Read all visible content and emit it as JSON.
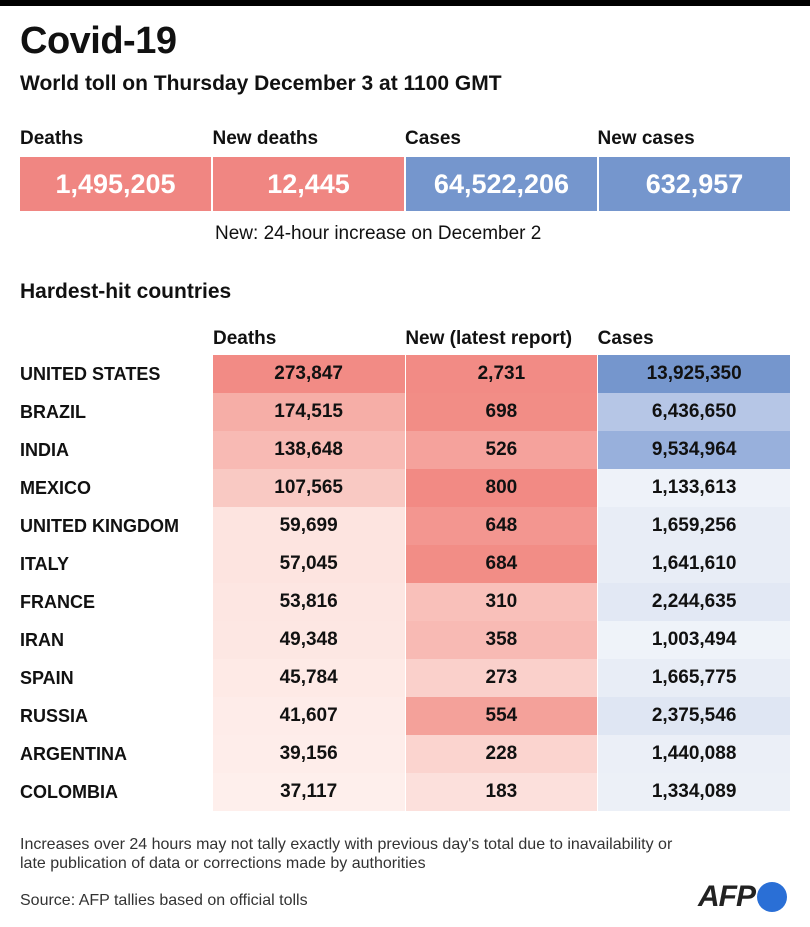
{
  "header": {
    "title": "Covid-19",
    "subtitle": "World toll on Thursday December 3 at 1100 GMT"
  },
  "summary": {
    "items": [
      {
        "label": "Deaths",
        "value": "1,495,205",
        "color": "#f08682"
      },
      {
        "label": "New deaths",
        "value": "12,445",
        "color": "#f08682"
      },
      {
        "label": "Cases",
        "value": "64,522,206",
        "color": "#7596cd"
      },
      {
        "label": "New cases",
        "value": "632,957",
        "color": "#7596cd"
      }
    ],
    "note": "New: 24-hour increase on December 2"
  },
  "table": {
    "title": "Hardest-hit countries",
    "headers": [
      "Deaths",
      "New (latest report)",
      "Cases"
    ],
    "rows": [
      {
        "country": "UNITED STATES",
        "deaths": "273,847",
        "new": "2,731",
        "cases": "13,925,350",
        "deaths_color": "#f28b85",
        "new_color": "#f28b85",
        "cases_color": "#7596cd"
      },
      {
        "country": "BRAZIL",
        "deaths": "174,515",
        "new": "698",
        "cases": "6,436,650",
        "deaths_color": "#f6aea7",
        "new_color": "#f28d86",
        "cases_color": "#b6c6e6"
      },
      {
        "country": "INDIA",
        "deaths": "138,648",
        "new": "526",
        "cases": "9,534,964",
        "deaths_color": "#f8bab4",
        "new_color": "#f5a29c",
        "cases_color": "#98b0dc"
      },
      {
        "country": "MEXICO",
        "deaths": "107,565",
        "new": "800",
        "cases": "1,133,613",
        "deaths_color": "#f9c9c3",
        "new_color": "#f28a84",
        "cases_color": "#eef2f9"
      },
      {
        "country": "UNITED KINGDOM",
        "deaths": "59,699",
        "new": "648",
        "cases": "1,659,256",
        "deaths_color": "#fde4e0",
        "new_color": "#f39690",
        "cases_color": "#e8edf6"
      },
      {
        "country": "ITALY",
        "deaths": "57,045",
        "new": "684",
        "cases": "1,641,610",
        "deaths_color": "#fde4e0",
        "new_color": "#f28d86",
        "cases_color": "#e8edf6"
      },
      {
        "country": "FRANCE",
        "deaths": "53,816",
        "new": "310",
        "cases": "2,244,635",
        "deaths_color": "#fde6e2",
        "new_color": "#f9c0ba",
        "cases_color": "#e2e8f4"
      },
      {
        "country": "IRAN",
        "deaths": "49,348",
        "new": "358",
        "cases": "1,003,494",
        "deaths_color": "#fde7e3",
        "new_color": "#f8bab4",
        "cases_color": "#eff3f9"
      },
      {
        "country": "SPAIN",
        "deaths": "45,784",
        "new": "273",
        "cases": "1,665,775",
        "deaths_color": "#feeae6",
        "new_color": "#fad0cb",
        "cases_color": "#e8edf6"
      },
      {
        "country": "RUSSIA",
        "deaths": "41,607",
        "new": "554",
        "cases": "2,375,546",
        "deaths_color": "#feece9",
        "new_color": "#f4a19a",
        "cases_color": "#dfe6f3"
      },
      {
        "country": "ARGENTINA",
        "deaths": "39,156",
        "new": "228",
        "cases": "1,440,088",
        "deaths_color": "#feedea",
        "new_color": "#fbd4cf",
        "cases_color": "#ebeff7"
      },
      {
        "country": "COLOMBIA",
        "deaths": "37,117",
        "new": "183",
        "cases": "1,334,089",
        "deaths_color": "#feefec",
        "new_color": "#fce0dc",
        "cases_color": "#ecf0f7"
      }
    ]
  },
  "footer": {
    "footnote": "Increases over 24 hours may not tally exactly with previous day's total due to inavailability or late publication of data or corrections made by authorities",
    "source": "Source: AFP tallies based on official tolls",
    "logo_text": "AFP"
  }
}
